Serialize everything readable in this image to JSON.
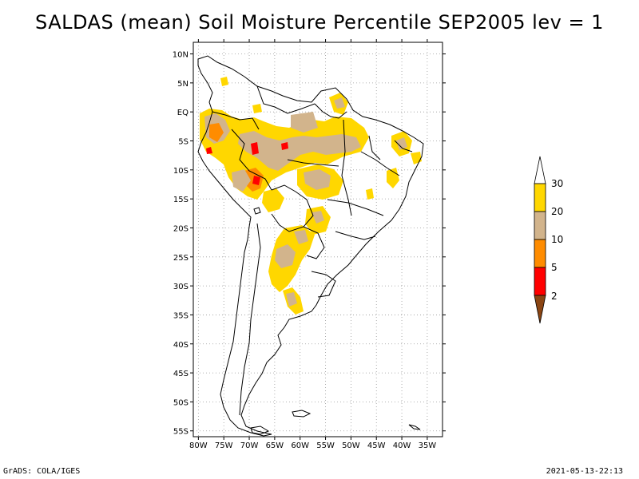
{
  "title": "SALDAS (mean) Soil Moisture Percentile SEP2005 lev = 1",
  "footer": {
    "left": "GrADS: COLA/IGES",
    "right": "2021-05-13-22:13"
  },
  "map": {
    "lon_range": [
      -81,
      -32
    ],
    "lat_range": [
      -56,
      12
    ],
    "x_ticks": [
      {
        "lon": -80,
        "label": "80W"
      },
      {
        "lon": -75,
        "label": "75W"
      },
      {
        "lon": -70,
        "label": "70W"
      },
      {
        "lon": -65,
        "label": "65W"
      },
      {
        "lon": -60,
        "label": "60W"
      },
      {
        "lon": -55,
        "label": "55W"
      },
      {
        "lon": -50,
        "label": "50W"
      },
      {
        "lon": -45,
        "label": "45W"
      },
      {
        "lon": -40,
        "label": "40W"
      },
      {
        "lon": -35,
        "label": "35W"
      }
    ],
    "y_ticks": [
      {
        "lat": 10,
        "label": "10N"
      },
      {
        "lat": 5,
        "label": "5N"
      },
      {
        "lat": 0,
        "label": "EQ"
      },
      {
        "lat": -5,
        "label": "5S"
      },
      {
        "lat": -10,
        "label": "10S"
      },
      {
        "lat": -15,
        "label": "15S"
      },
      {
        "lat": -20,
        "label": "20S"
      },
      {
        "lat": -25,
        "label": "25S"
      },
      {
        "lat": -30,
        "label": "30S"
      },
      {
        "lat": -35,
        "label": "35S"
      },
      {
        "lat": -40,
        "label": "40S"
      },
      {
        "lat": -45,
        "label": "45S"
      },
      {
        "lat": -50,
        "label": "50S"
      },
      {
        "lat": -55,
        "label": "55S"
      }
    ]
  },
  "colorbar": {
    "labels": [
      "2",
      "5",
      "10",
      "20",
      "30"
    ],
    "colors": {
      "below_2": "#8b4513",
      "2_5": "#ff0000",
      "5_10": "#ff8c00",
      "10_20": "#d2b48c",
      "20_30": "#ffd700",
      "above_30": "#ffffff"
    }
  }
}
